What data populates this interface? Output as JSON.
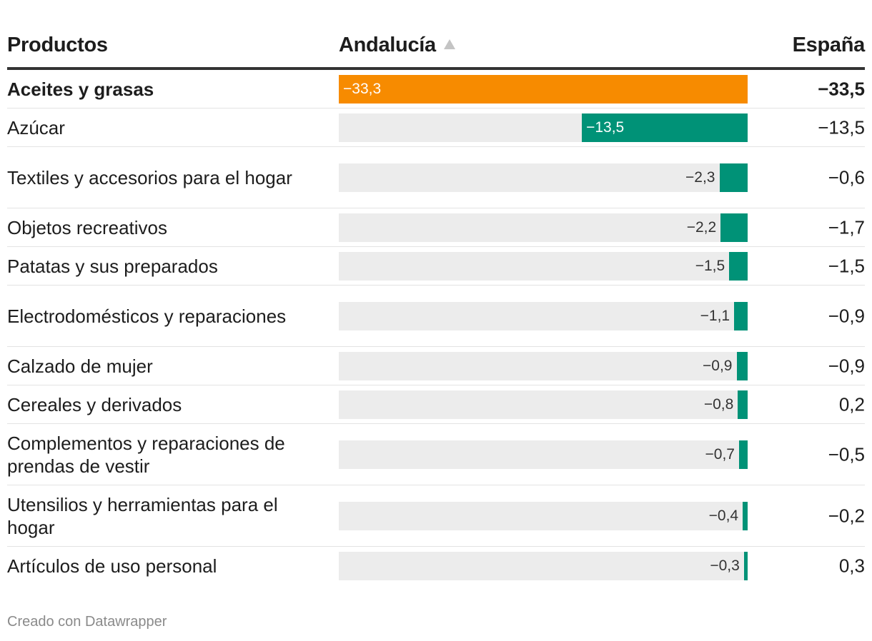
{
  "header": {
    "product_label": "Productos",
    "region_label": "Andalucía",
    "country_label": "España"
  },
  "chart_data": {
    "type": "table",
    "title": "",
    "bar_column": "Andalucía",
    "value_column": "España",
    "xlim": [
      -33.3,
      0
    ],
    "bar_color": "#009277",
    "highlight_color": "#f78b00",
    "track_color": "#ececec",
    "rows": [
      {
        "product": "Aceites y grasas",
        "region": -33.3,
        "region_label": "−33,3",
        "country": "−33,5",
        "highlight": true,
        "lines": 1
      },
      {
        "product": "Azúcar",
        "region": -13.5,
        "region_label": "−13,5",
        "country": "−13,5",
        "highlight": false,
        "lines": 1
      },
      {
        "product": "Textiles y accesorios para el hogar",
        "region": -2.3,
        "region_label": "−2,3",
        "country": "−0,6",
        "highlight": false,
        "lines": 2
      },
      {
        "product": "Objetos recreativos",
        "region": -2.2,
        "region_label": "−2,2",
        "country": "−1,7",
        "highlight": false,
        "lines": 1
      },
      {
        "product": "Patatas y sus preparados",
        "region": -1.5,
        "region_label": "−1,5",
        "country": "−1,5",
        "highlight": false,
        "lines": 1
      },
      {
        "product": "Electrodomésticos y reparaciones",
        "region": -1.1,
        "region_label": "−1,1",
        "country": "−0,9",
        "highlight": false,
        "lines": 2
      },
      {
        "product": "Calzado de mujer",
        "region": -0.9,
        "region_label": "−0,9",
        "country": "−0,9",
        "highlight": false,
        "lines": 1
      },
      {
        "product": "Cereales y derivados",
        "region": -0.8,
        "region_label": "−0,8",
        "country": "0,2",
        "highlight": false,
        "lines": 1
      },
      {
        "product": "Complementos y reparaciones de prendas de vestir",
        "region": -0.7,
        "region_label": "−0,7",
        "country": "−0,5",
        "highlight": false,
        "lines": 2
      },
      {
        "product": "Utensilios y herramientas para el hogar",
        "region": -0.4,
        "region_label": "−0,4",
        "country": "−0,2",
        "highlight": false,
        "lines": 2
      },
      {
        "product": "Artículos de uso personal",
        "region": -0.3,
        "region_label": "−0,3",
        "country": "0,3",
        "highlight": false,
        "lines": 1
      }
    ]
  },
  "footer": {
    "credit": "Creado con Datawrapper"
  }
}
